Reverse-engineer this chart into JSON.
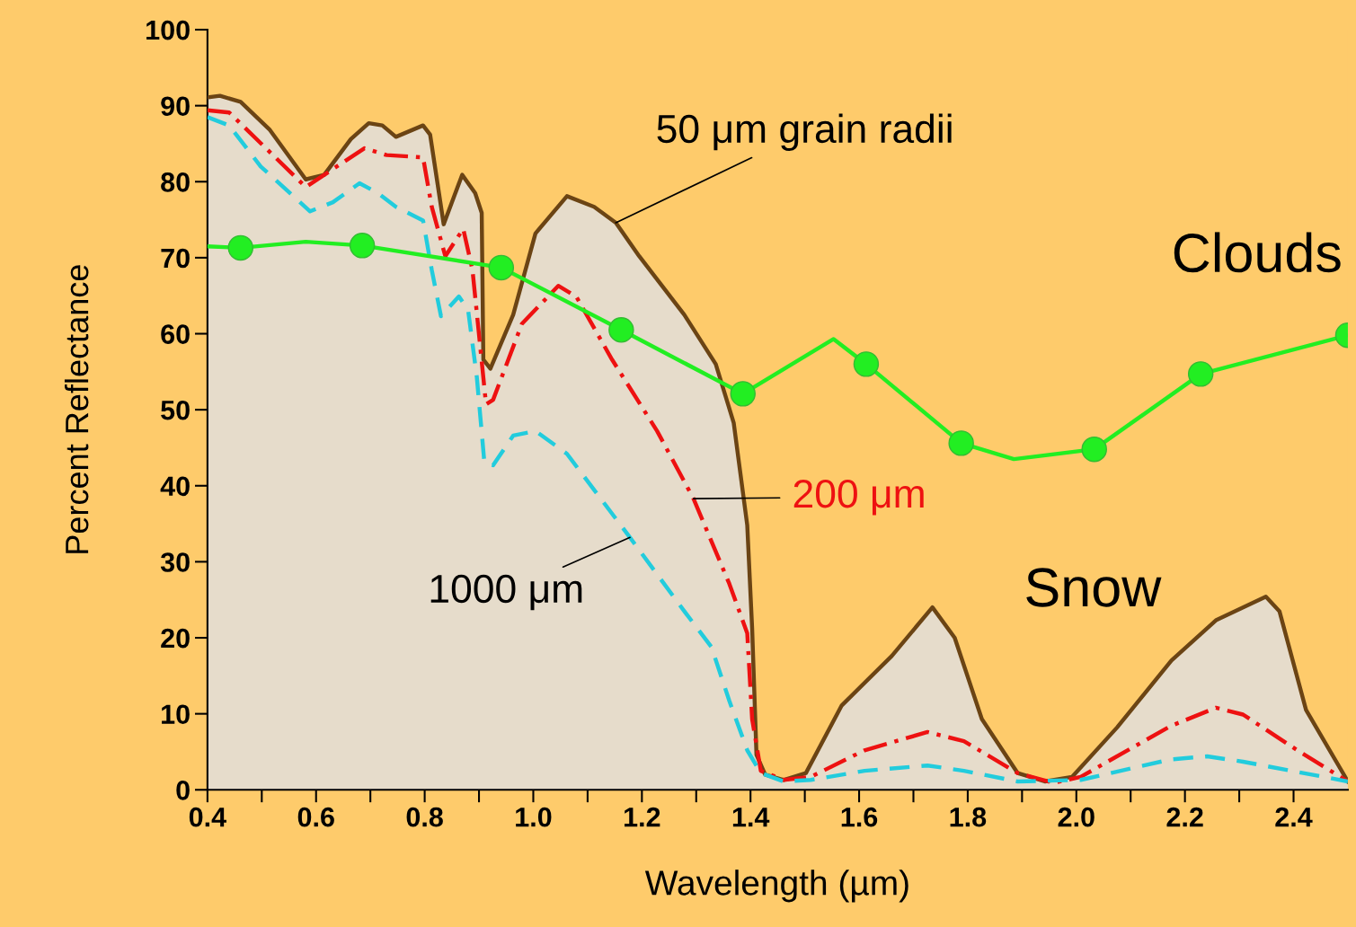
{
  "chart_data": {
    "type": "line",
    "xlabel": "Wavelength (µm)",
    "ylabel": "Percent Reflectance",
    "xlim": [
      0.4,
      2.5
    ],
    "ylim": [
      0,
      100
    ],
    "xticks": [
      {
        "value": 0.4,
        "label": "0.4"
      },
      {
        "value": 0.5,
        "label": null
      },
      {
        "value": 0.6,
        "label": "0.6"
      },
      {
        "value": 0.7,
        "label": null
      },
      {
        "value": 0.8,
        "label": "0.8"
      },
      {
        "value": 0.9,
        "label": null
      },
      {
        "value": 1.0,
        "label": "1.0"
      },
      {
        "value": 1.1,
        "label": null
      },
      {
        "value": 1.2,
        "label": "1.2"
      },
      {
        "value": 1.3,
        "label": null
      },
      {
        "value": 1.4,
        "label": "1.4"
      },
      {
        "value": 1.5,
        "label": null
      },
      {
        "value": 1.6,
        "label": "1.6"
      },
      {
        "value": 1.7,
        "label": null
      },
      {
        "value": 1.8,
        "label": "1.8"
      },
      {
        "value": 1.9,
        "label": null
      },
      {
        "value": 2.0,
        "label": "2.0"
      },
      {
        "value": 2.1,
        "label": null
      },
      {
        "value": 2.2,
        "label": "2.2"
      },
      {
        "value": 2.3,
        "label": null
      },
      {
        "value": 2.4,
        "label": "2.4"
      }
    ],
    "yticks": [
      0,
      10,
      20,
      30,
      40,
      50,
      60,
      70,
      80,
      90,
      100
    ],
    "grid": false,
    "legend": false,
    "annotations": [
      "Snow"
    ],
    "series": [
      {
        "name": "50 μm grain radii",
        "type": "area",
        "color": "#6b4414",
        "line_style": "solid",
        "x": [
          0.4,
          0.423,
          0.461,
          0.515,
          0.581,
          0.615,
          0.664,
          0.697,
          0.722,
          0.747,
          0.797,
          0.81,
          0.835,
          0.869,
          0.893,
          0.905,
          0.908,
          0.921,
          0.963,
          1.004,
          1.062,
          1.112,
          1.152,
          1.195,
          1.278,
          1.336,
          1.369,
          1.394,
          1.403,
          1.411,
          1.427,
          1.461,
          1.502,
          1.568,
          1.66,
          1.735,
          1.776,
          1.826,
          1.892,
          1.942,
          1.992,
          2.075,
          2.175,
          2.257,
          2.349,
          2.374,
          2.423,
          2.5
        ],
        "values": [
          91.1,
          91.3,
          90.5,
          86.8,
          80.3,
          80.9,
          85.6,
          87.7,
          87.4,
          85.9,
          87.4,
          86.2,
          74.4,
          80.9,
          78.5,
          75.9,
          56.6,
          55.4,
          62.5,
          73.2,
          78.1,
          76.7,
          74.6,
          70.2,
          62.5,
          56.0,
          48.3,
          34.8,
          21.2,
          4.6,
          2.0,
          1.3,
          2.2,
          11.1,
          17.6,
          24.0,
          20.0,
          9.3,
          2.2,
          1.1,
          1.7,
          8.2,
          17.0,
          22.3,
          25.4,
          23.5,
          10.5,
          1.1
        ]
      },
      {
        "name": "200 μm",
        "color": "#ee1111",
        "line_style": "dashdot",
        "x": [
          0.4,
          0.44,
          0.581,
          0.689,
          0.73,
          0.797,
          0.813,
          0.838,
          0.871,
          0.888,
          0.913,
          0.926,
          0.979,
          1.046,
          1.079,
          1.145,
          1.228,
          1.295,
          1.361,
          1.394,
          1.403,
          1.419,
          1.461,
          1.511,
          1.61,
          1.726,
          1.793,
          1.892,
          1.958,
          2.008,
          2.174,
          2.257,
          2.307,
          2.407,
          2.5
        ],
        "values": [
          89.4,
          89.1,
          79.3,
          84.4,
          83.5,
          83.2,
          76.7,
          70.2,
          73.8,
          68.4,
          50.7,
          51.3,
          61.3,
          66.3,
          64.9,
          56.6,
          47.2,
          38.3,
          27.1,
          20.6,
          9.3,
          2.5,
          1.3,
          1.7,
          5.2,
          7.6,
          6.4,
          2.2,
          0.9,
          1.7,
          8.4,
          10.8,
          9.9,
          5.2,
          1.1
        ]
      },
      {
        "name": "1000 μm",
        "color": "#22ccdd",
        "line_style": "dashed",
        "x": [
          0.4,
          0.44,
          0.498,
          0.589,
          0.631,
          0.68,
          0.714,
          0.747,
          0.797,
          0.813,
          0.83,
          0.863,
          0.88,
          0.896,
          0.91,
          0.926,
          0.963,
          1.004,
          1.062,
          1.178,
          1.278,
          1.328,
          1.361,
          1.394,
          1.419,
          1.461,
          1.511,
          1.61,
          1.726,
          1.793,
          1.892,
          2.008,
          2.174,
          2.241,
          2.307,
          2.5
        ],
        "values": [
          88.5,
          87.4,
          82.0,
          76.1,
          77.3,
          79.8,
          78.5,
          76.7,
          74.9,
          68.4,
          62.3,
          64.9,
          63.1,
          54.3,
          43.0,
          42.7,
          46.6,
          47.2,
          44.2,
          33.2,
          23.5,
          18.8,
          11.7,
          5.2,
          2.2,
          1.1,
          1.3,
          2.5,
          3.2,
          2.5,
          1.1,
          1.3,
          4.0,
          4.4,
          3.7,
          1.1
        ]
      },
      {
        "name": "Clouds",
        "color": "#22ee22",
        "line_style": "solid",
        "x": [
          0.4,
          0.461,
          0.581,
          0.685,
          0.941,
          1.162,
          1.386,
          1.553,
          1.613,
          1.788,
          1.885,
          2.033,
          2.229,
          2.5
        ],
        "values": [
          71.5,
          71.3,
          72.1,
          71.6,
          68.7,
          60.5,
          52.1,
          59.3,
          56.0,
          45.6,
          43.5,
          44.8,
          54.7,
          59.8
        ]
      },
      {
        "type": "scatter",
        "color": "#22ee22",
        "marker": "circle",
        "x": [
          0.461,
          0.685,
          0.941,
          1.162,
          1.386,
          1.613,
          1.788,
          2.033,
          2.229,
          2.5
        ],
        "values": [
          71.3,
          71.6,
          68.7,
          60.5,
          52.1,
          56.0,
          45.6,
          44.8,
          54.7,
          59.8
        ]
      }
    ]
  }
}
